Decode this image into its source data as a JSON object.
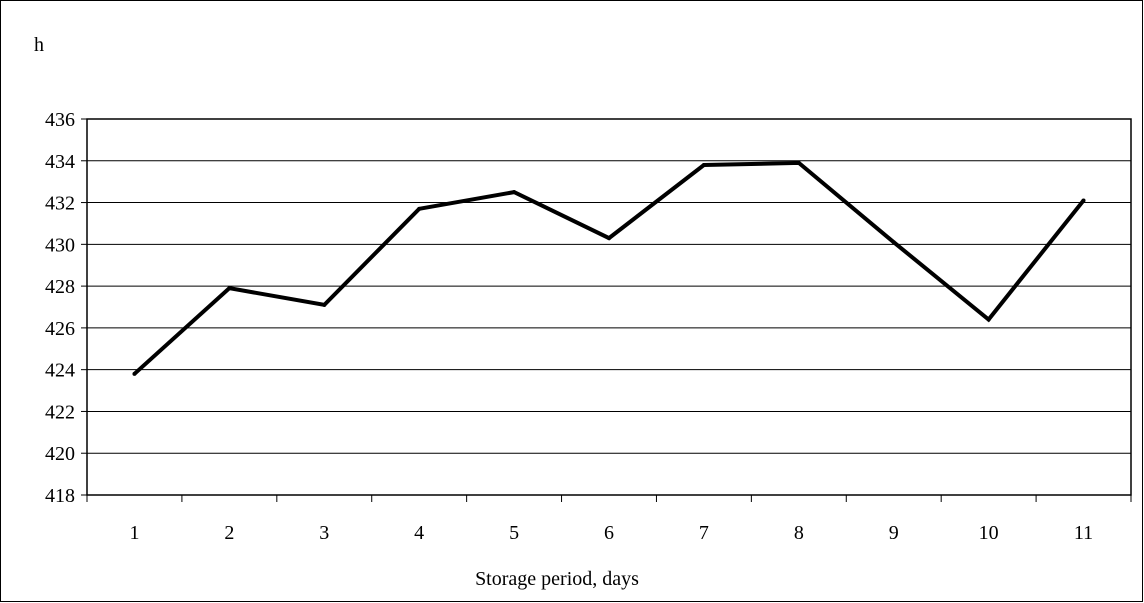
{
  "chart_data": {
    "type": "line",
    "title": "",
    "xlabel": "Storage period, days",
    "ylabel": "h",
    "categories": [
      "1",
      "2",
      "3",
      "4",
      "5",
      "6",
      "7",
      "8",
      "9",
      "10",
      "11"
    ],
    "series": [
      {
        "values": [
          423.8,
          427.9,
          427.1,
          431.7,
          432.5,
          430.3,
          433.8,
          433.9,
          430.1,
          426.4,
          432.1
        ],
        "color": "#000000"
      }
    ],
    "ylim": [
      418,
      436
    ],
    "yticks": [
      418,
      420,
      422,
      424,
      426,
      428,
      430,
      432,
      434,
      436
    ],
    "grid": "horizontal",
    "legend": "none"
  }
}
